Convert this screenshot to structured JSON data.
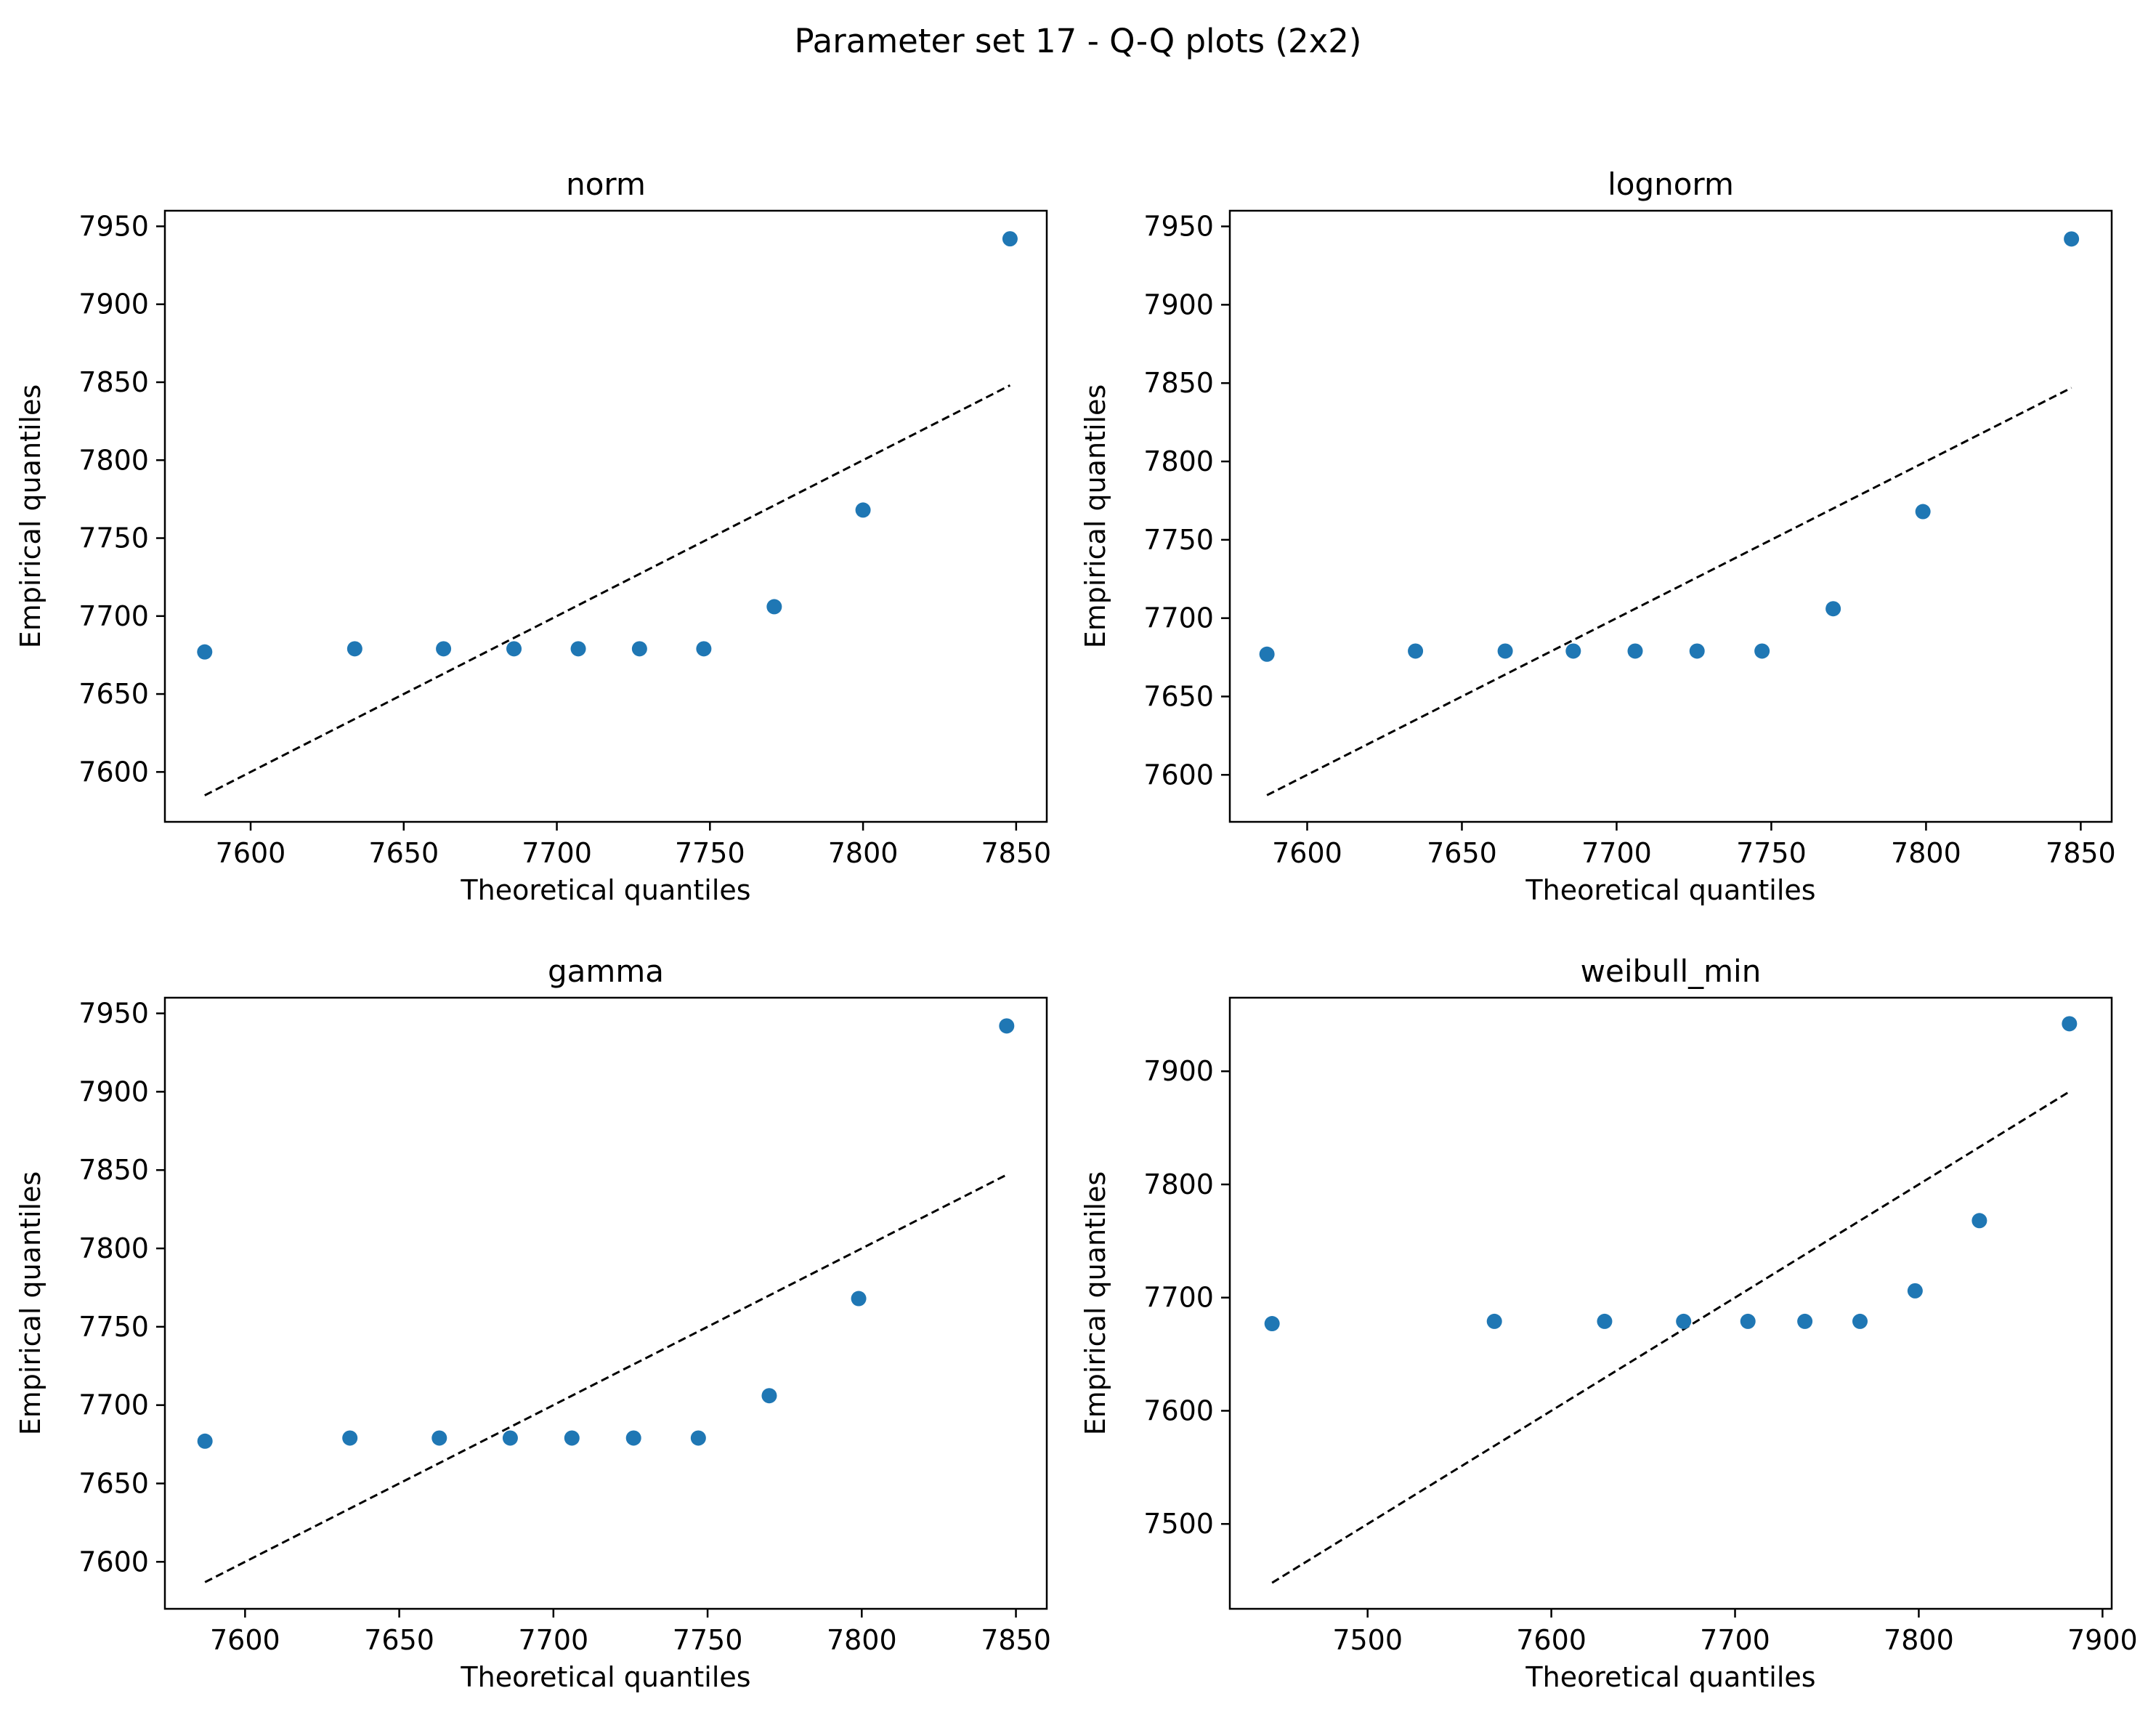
{
  "figure": {
    "title": "Parameter set 17 - Q-Q plots (2x2)"
  },
  "style": {
    "point_color": "#1f77b4",
    "reference_line_color": "#000000",
    "reference_line_style": "dashed",
    "grid": false
  },
  "chart_data": [
    {
      "type": "scatter",
      "title": "norm",
      "xlabel": "Theoretical quantiles",
      "ylabel": "Empirical quantiles",
      "xlim": [
        7572,
        7860
      ],
      "ylim": [
        7568,
        7960
      ],
      "xticks": [
        7600,
        7650,
        7700,
        7750,
        7800,
        7850
      ],
      "yticks": [
        7600,
        7650,
        7700,
        7750,
        7800,
        7850,
        7900,
        7950
      ],
      "x": [
        7585,
        7634,
        7663,
        7686,
        7707,
        7727,
        7748,
        7771,
        7800,
        7848
      ],
      "y": [
        7677,
        7679,
        7679,
        7679,
        7679,
        7679,
        7679,
        7706,
        7768,
        7942
      ],
      "reference_line": {
        "x": [
          7585,
          7848
        ],
        "y": [
          7585,
          7848
        ]
      }
    },
    {
      "type": "scatter",
      "title": "lognorm",
      "xlabel": "Theoretical quantiles",
      "ylabel": "Empirical quantiles",
      "xlim": [
        7575,
        7860
      ],
      "ylim": [
        7570,
        7960
      ],
      "xticks": [
        7600,
        7650,
        7700,
        7750,
        7800,
        7850
      ],
      "yticks": [
        7600,
        7650,
        7700,
        7750,
        7800,
        7850,
        7900,
        7950
      ],
      "x": [
        7587,
        7635,
        7664,
        7686,
        7706,
        7726,
        7747,
        7770,
        7799,
        7847
      ],
      "y": [
        7677,
        7679,
        7679,
        7679,
        7679,
        7679,
        7679,
        7706,
        7768,
        7942
      ],
      "reference_line": {
        "x": [
          7587,
          7847
        ],
        "y": [
          7587,
          7847
        ]
      }
    },
    {
      "type": "scatter",
      "title": "gamma",
      "xlabel": "Theoretical quantiles",
      "ylabel": "Empirical quantiles",
      "xlim": [
        7574,
        7860
      ],
      "ylim": [
        7570,
        7960
      ],
      "xticks": [
        7600,
        7650,
        7700,
        7750,
        7800,
        7850
      ],
      "yticks": [
        7600,
        7650,
        7700,
        7750,
        7800,
        7850,
        7900,
        7950
      ],
      "x": [
        7587,
        7634,
        7663,
        7686,
        7706,
        7726,
        7747,
        7770,
        7799,
        7847
      ],
      "y": [
        7677,
        7679,
        7679,
        7679,
        7679,
        7679,
        7679,
        7706,
        7768,
        7942
      ],
      "reference_line": {
        "x": [
          7587,
          7847
        ],
        "y": [
          7587,
          7847
        ]
      }
    },
    {
      "type": "scatter",
      "title": "weibull_min",
      "xlabel": "Theoretical quantiles",
      "ylabel": "Empirical quantiles",
      "xlim": [
        7425,
        7905
      ],
      "ylim": [
        7425,
        7965
      ],
      "xticks": [
        7500,
        7600,
        7700,
        7800,
        7900
      ],
      "yticks": [
        7500,
        7600,
        7700,
        7800,
        7900
      ],
      "x": [
        7448,
        7569,
        7629,
        7672,
        7707,
        7738,
        7768,
        7798,
        7833,
        7882
      ],
      "y": [
        7677,
        7679,
        7679,
        7679,
        7679,
        7679,
        7679,
        7706,
        7768,
        7942
      ],
      "reference_line": {
        "x": [
          7448,
          7882
        ],
        "y": [
          7448,
          7882
        ]
      }
    }
  ]
}
